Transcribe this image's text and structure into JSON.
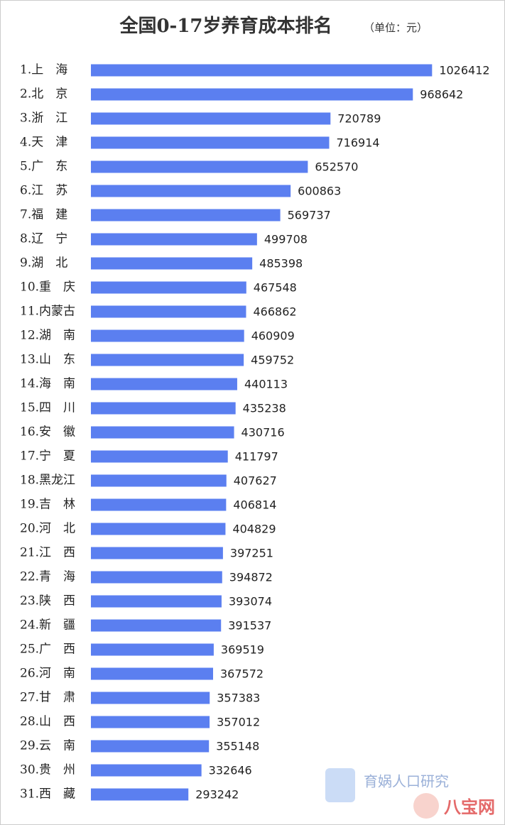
{
  "chart_data": {
    "type": "bar",
    "orientation": "horizontal",
    "title": "全国0-17岁养育成本排名",
    "subtitle": "（单位：元）",
    "categories": [
      "1.上　海",
      "2.北　京",
      "3.浙　江",
      "4.天　津",
      "5.广　东",
      "6.江　苏",
      "7.福　建",
      "8.辽　宁",
      "9.湖　北",
      "10.重　庆",
      "11.内蒙古",
      "12.湖　南",
      "13.山　东",
      "14.海　南",
      "15.四　川",
      "16.安　徽",
      "17.宁　夏",
      "18.黑龙江",
      "19.吉　林",
      "20.河　北",
      "21.江　西",
      "22.青　海",
      "23.陕　西",
      "24.新　疆",
      "25.广　西",
      "26.河　南",
      "27.甘　肃",
      "28.山　西",
      "29.云　南",
      "30.贵　州",
      "31.西　藏"
    ],
    "values": [
      1026412,
      968642,
      720789,
      716914,
      652570,
      600863,
      569737,
      499708,
      485398,
      467548,
      466862,
      460909,
      459752,
      440113,
      435238,
      430716,
      411797,
      407627,
      406814,
      404829,
      397251,
      394872,
      393074,
      391537,
      369519,
      367572,
      357383,
      357012,
      355148,
      332646,
      293242
    ],
    "color": "#5b7ff0",
    "xlim": [
      0,
      1030000
    ],
    "watermarks": [
      "育娲人口研究",
      "八宝网"
    ]
  }
}
